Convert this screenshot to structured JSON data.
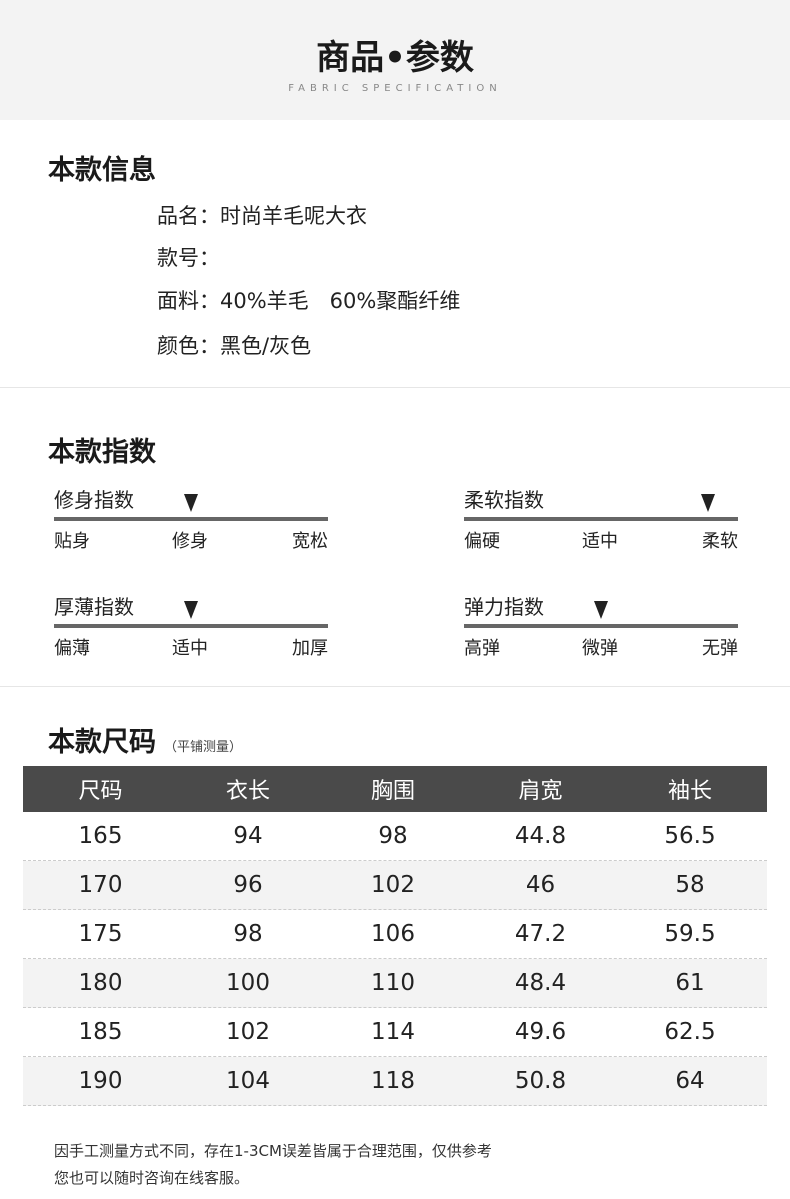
{
  "header": {
    "title": "商品•参数",
    "subtitle": "FABRIC SPECIFICATION"
  },
  "info": {
    "title": "本款信息",
    "items": [
      "品名：时尚羊毛呢大衣",
      "款号：",
      "面料：40%羊毛　60%聚酯纤维",
      "颜色：黑色/灰色"
    ]
  },
  "indices": {
    "title": "本款指数",
    "items": [
      {
        "name": "修身指数",
        "labels": [
          "贴身",
          "修身",
          "宽松"
        ],
        "selected": 1
      },
      {
        "name": "柔软指数",
        "labels": [
          "偏硬",
          "适中",
          "柔软"
        ],
        "selected": 2
      },
      {
        "name": "厚薄指数",
        "labels": [
          "偏薄",
          "适中",
          "加厚"
        ],
        "selected": 1
      },
      {
        "name": "弹力指数",
        "labels": [
          "高弹",
          "微弹",
          "无弹"
        ],
        "selected": 1
      }
    ]
  },
  "sizes": {
    "title": "本款尺码",
    "note": "（平铺测量）",
    "headers": [
      "尺码",
      "衣长",
      "胸围",
      "肩宽",
      "袖长"
    ],
    "rows": [
      [
        "165",
        "94",
        "98",
        "44.8",
        "56.5"
      ],
      [
        "170",
        "96",
        "102",
        "46",
        "58"
      ],
      [
        "175",
        "98",
        "106",
        "47.2",
        "59.5"
      ],
      [
        "180",
        "100",
        "110",
        "48.4",
        "61"
      ],
      [
        "185",
        "102",
        "114",
        "49.6",
        "62.5"
      ],
      [
        "190",
        "104",
        "118",
        "50.8",
        "64"
      ]
    ]
  },
  "footer": {
    "line1": "因手工测量方式不同，存在1-3CM误差皆属于合理范围，仅供参考",
    "line2": "您也可以随时咨询在线客服。"
  }
}
